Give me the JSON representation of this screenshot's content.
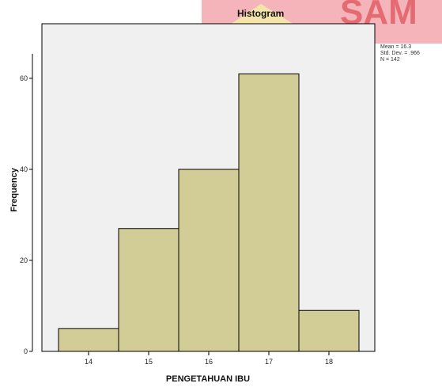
{
  "chart_data": {
    "type": "bar",
    "title": "Histogram",
    "xlabel": "PENGETAHUAN IBU",
    "ylabel": "Frequency",
    "categories": [
      "14",
      "15",
      "16",
      "17",
      "18"
    ],
    "values": [
      5,
      27,
      40,
      61,
      9
    ],
    "ylim": [
      0,
      72
    ],
    "yticks": [
      "0",
      "20",
      "40",
      "60"
    ],
    "grid": false,
    "stats": {
      "mean": "Mean = 16.3",
      "std": "Std. Dev. = .966",
      "n": "N = 142"
    },
    "colors": {
      "bar_fill": "#d2cc97",
      "plot_background": "#f0f0f0"
    }
  },
  "watermark": {
    "text": "SAM"
  }
}
